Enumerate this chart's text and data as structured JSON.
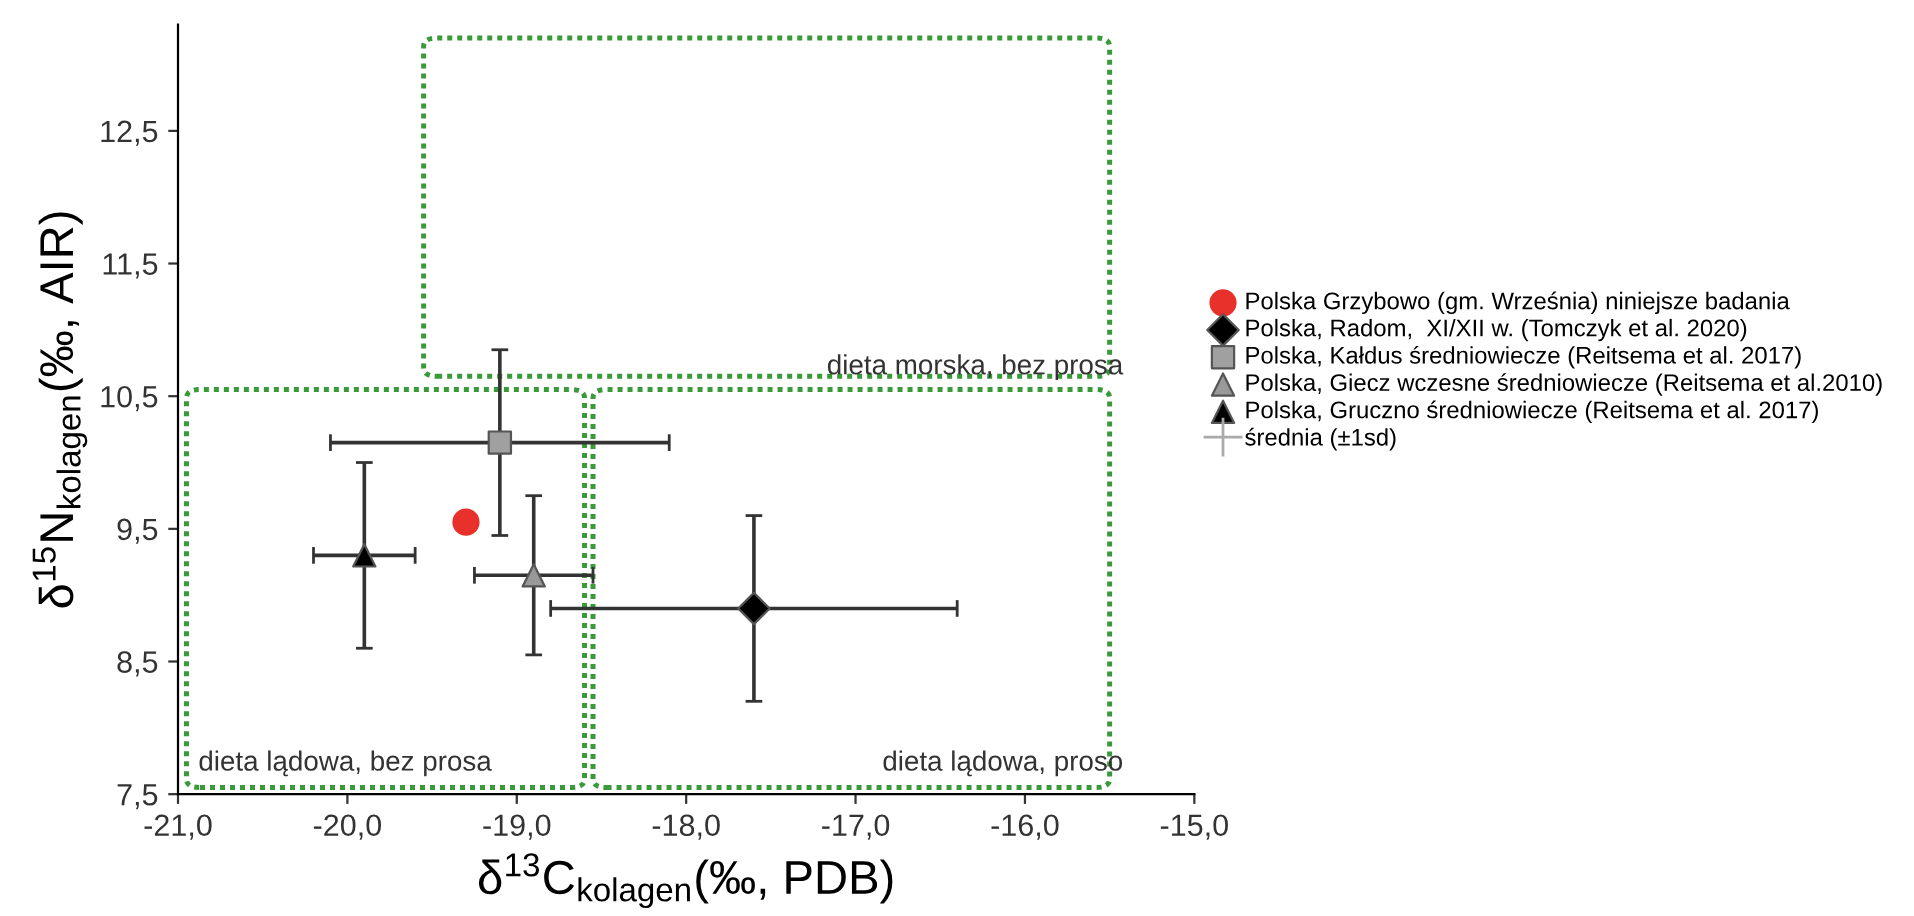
{
  "chart_data": {
    "type": "scatter",
    "xlabel": "δ$^{13}$C$_{kolagen}$(‰, PDB)",
    "ylabel": "δ$^{15}$N$_{kolagen}$(‰, AIR)",
    "xlim": [
      -21,
      -15
    ],
    "ylim": [
      7.5,
      13.3
    ],
    "xticks": [
      {
        "value": -21,
        "label": "-21,0"
      },
      {
        "value": -20,
        "label": "-20,0"
      },
      {
        "value": -19,
        "label": "-19,0"
      },
      {
        "value": -18,
        "label": "-18,0"
      },
      {
        "value": -17,
        "label": "-17,0"
      },
      {
        "value": -16,
        "label": "-16,0"
      },
      {
        "value": -15,
        "label": "-15,0"
      }
    ],
    "yticks": [
      {
        "value": 7.5,
        "label": "7,5"
      },
      {
        "value": 8.5,
        "label": "8,5"
      },
      {
        "value": 9.5,
        "label": "9,5"
      },
      {
        "value": 10.5,
        "label": "10,5"
      },
      {
        "value": 11.5,
        "label": "11,5"
      },
      {
        "value": 12.5,
        "label": "12,5"
      }
    ],
    "grid": false,
    "legend": "right",
    "series": [
      {
        "name": "Polska Grzybowo (gm. Września) niniejsze badania",
        "color": "#e8312a",
        "marker": "circle",
        "x": [
          -19.3
        ],
        "values": [
          9.55
        ]
      },
      {
        "name": "Polska, Radom,  XI/XII w. (Tomczyk et al. 2020)",
        "color": "#000000",
        "marker": "diamond",
        "x": [
          -17.6
        ],
        "values": [
          8.9
        ],
        "errors": [
          0.7
        ],
        "xerrors": [
          1.2
        ]
      },
      {
        "name": "Polska, Kałdus średniowiecze (Reitsema et al. 2017)",
        "color": "#a0a0a0",
        "marker": "square",
        "x": [
          -19.1
        ],
        "values": [
          10.15
        ],
        "errors": [
          0.7
        ],
        "xerrors": [
          1.0
        ]
      },
      {
        "name": "Polska, Giecz wczesne średniowiecze (Reitsema et al.2010)",
        "color": "#999999",
        "marker": "triangle",
        "x": [
          -18.9
        ],
        "values": [
          9.15
        ],
        "errors": [
          0.6
        ],
        "xerrors": [
          0.35
        ]
      },
      {
        "name": "Polska, Gruczno średniowiecze (Reitsema et al. 2017)",
        "color": "#000000",
        "marker": "triangle",
        "x": [
          -19.9
        ],
        "values": [
          9.3
        ],
        "errors": [
          0.7
        ],
        "xerrors": [
          0.3
        ]
      }
    ],
    "annotations": [
      "średnia (±1sd)",
      "dieta morska, bez prosa",
      "dieta lądowa, bez prosa",
      "dieta lądowa, proso"
    ]
  }
}
